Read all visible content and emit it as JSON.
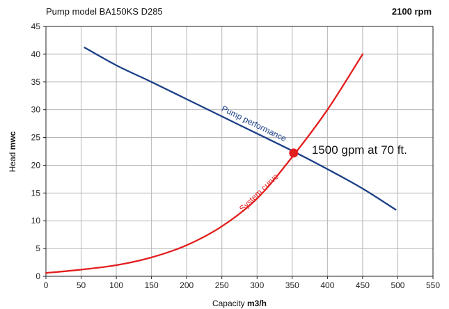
{
  "header": {
    "model_label": "Pump model BA150KS D285",
    "speed_label": "2100 rpm"
  },
  "colors": {
    "pump_curve": "#1c3f87",
    "system_curve": "#e31e1e",
    "grid": "#b5b5b5",
    "axis": "#222222",
    "operating_point": "#e31e1e"
  },
  "chart_data": {
    "type": "line",
    "title": "Pump model BA150KS D285",
    "xlabel": {
      "prefix": "Capacity ",
      "unit": "m3/h"
    },
    "ylabel": {
      "prefix": "Head ",
      "unit": "mwc"
    },
    "xlim": [
      0,
      550
    ],
    "ylim": [
      0,
      45
    ],
    "x_ticks": [
      0,
      50,
      100,
      150,
      200,
      250,
      300,
      350,
      400,
      450,
      500,
      550
    ],
    "y_ticks": [
      0,
      5,
      10,
      15,
      20,
      25,
      30,
      35,
      40,
      45
    ],
    "grid": true,
    "series": [
      {
        "name": "Pump performance",
        "color": "#1c3f87",
        "x": [
          55,
          100,
          150,
          200,
          250,
          300,
          350,
          400,
          450,
          497
        ],
        "y": [
          41.2,
          38.0,
          35.0,
          31.9,
          28.8,
          25.7,
          22.6,
          19.3,
          15.8,
          12.0
        ]
      },
      {
        "name": "System curve",
        "color": "#e31e1e",
        "x": [
          0,
          50,
          100,
          150,
          200,
          250,
          300,
          350,
          400,
          450
        ],
        "y": [
          0.6,
          1.2,
          2.0,
          3.4,
          5.6,
          9.0,
          14.0,
          21.5,
          30.0,
          40.0
        ]
      }
    ],
    "operating_point": {
      "x": 352,
      "y": 22.2,
      "label": "1500 gpm at 70 ft."
    }
  }
}
